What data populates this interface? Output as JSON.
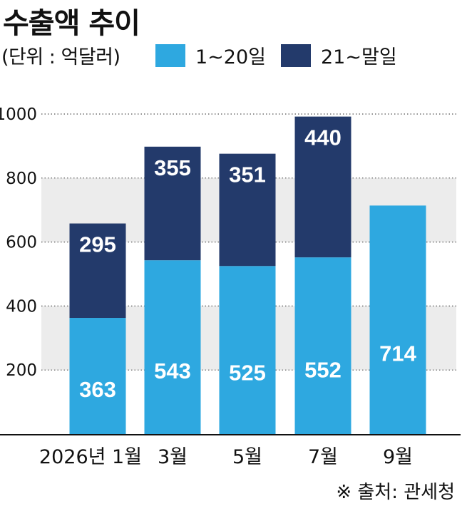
{
  "title": "수출액 추이",
  "unit_label": "(단위 : 억달러)",
  "legend": [
    {
      "label": "1~20일",
      "color": "#2ea8e0"
    },
    {
      "label": "21~말일",
      "color": "#233a6b"
    }
  ],
  "source": "※ 출처: 관세청",
  "chart_data": {
    "type": "bar",
    "stacked": true,
    "categories": [
      "2026년 1월",
      "3월",
      "5월",
      "7월",
      "9월"
    ],
    "series": [
      {
        "name": "1~20일",
        "values": [
          363,
          543,
          525,
          552,
          714
        ],
        "color": "#2ea8e0"
      },
      {
        "name": "21~말일",
        "values": [
          295,
          355,
          351,
          440,
          null
        ],
        "color": "#233a6b"
      }
    ],
    "ylim": [
      0,
      1000
    ],
    "yticks": [
      200,
      400,
      600,
      800,
      1000
    ],
    "grid": "dotted horizontal",
    "background_bands": true
  }
}
